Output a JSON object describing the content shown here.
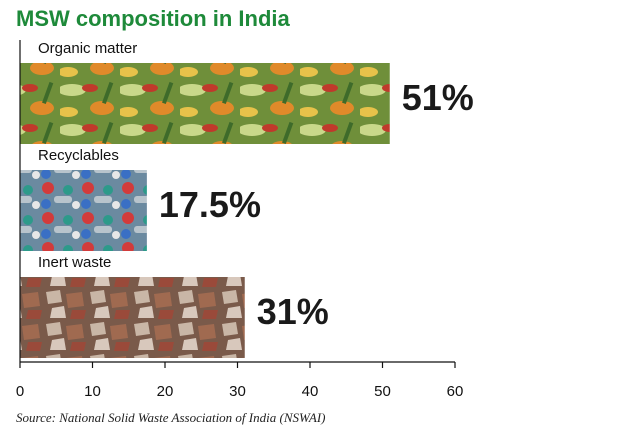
{
  "chart_data": {
    "type": "bar",
    "orientation": "horizontal",
    "title": "MSW composition in India",
    "categories": [
      "Organic matter",
      "Recyclables",
      "Inert waste"
    ],
    "values": [
      51,
      17.5,
      31
    ],
    "value_labels": [
      "51%",
      "17.5%",
      "31%"
    ],
    "xlim": [
      0,
      60
    ],
    "xticks": [
      0,
      10,
      20,
      30,
      40,
      50,
      60
    ],
    "source": "Source: National Solid Waste Association of India (NSWAI)"
  }
}
